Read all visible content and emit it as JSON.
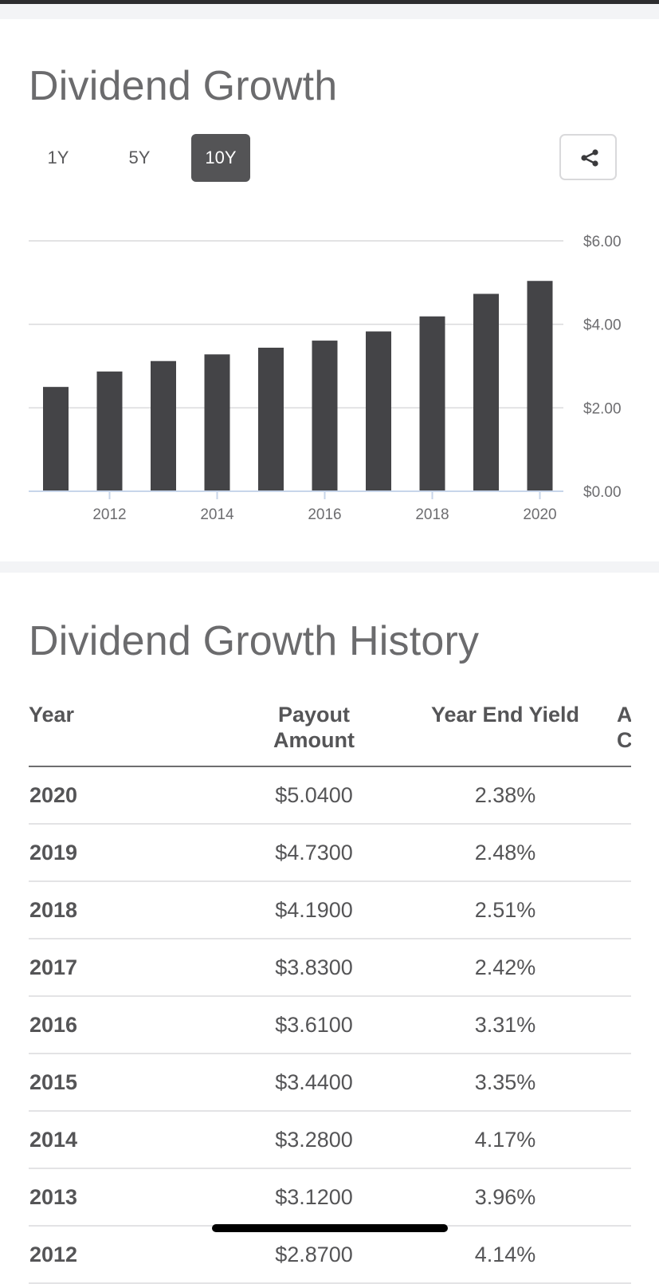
{
  "sections": {
    "growth_title": "Dividend Growth",
    "history_title": "Dividend Growth History"
  },
  "range_tabs": [
    {
      "label": "1Y",
      "active": false
    },
    {
      "label": "5Y",
      "active": false
    },
    {
      "label": "10Y",
      "active": true
    }
  ],
  "share": {
    "icon": "share-icon"
  },
  "chart_data": {
    "type": "bar",
    "categories": [
      "2011",
      "2012",
      "2013",
      "2014",
      "2015",
      "2016",
      "2017",
      "2018",
      "2019",
      "2020"
    ],
    "values": [
      2.5,
      2.87,
      3.12,
      3.28,
      3.44,
      3.61,
      3.83,
      4.19,
      4.73,
      5.04
    ],
    "x_tick_labels": [
      "2012",
      "2014",
      "2016",
      "2018",
      "2020"
    ],
    "y_tick_labels": [
      "$6.00",
      "$4.00",
      "$2.00",
      "$0.00"
    ],
    "ylim": [
      0,
      6
    ],
    "y_axis_position": "right",
    "grid": true,
    "bar_color": "#444447"
  },
  "history_table": {
    "columns": [
      "Year",
      "Payout Amount",
      "Year End Yield",
      "A C"
    ],
    "header_lines": {
      "year": "Year",
      "payout_1": "Payout",
      "payout_2": "Amount",
      "yield": "Year End Yield",
      "annual_1": "A",
      "annual_2": "C"
    },
    "rows": [
      {
        "year": "2020",
        "payout": "$5.0400",
        "yield": "2.38%"
      },
      {
        "year": "2019",
        "payout": "$4.7300",
        "yield": "2.48%"
      },
      {
        "year": "2018",
        "payout": "$4.1900",
        "yield": "2.51%"
      },
      {
        "year": "2017",
        "payout": "$3.8300",
        "yield": "2.42%"
      },
      {
        "year": "2016",
        "payout": "$3.6100",
        "yield": "3.31%"
      },
      {
        "year": "2015",
        "payout": "$3.4400",
        "yield": "3.35%"
      },
      {
        "year": "2014",
        "payout": "$3.2800",
        "yield": "4.17%"
      },
      {
        "year": "2013",
        "payout": "$3.1200",
        "yield": "3.96%"
      },
      {
        "year": "2012",
        "payout": "$2.8700",
        "yield": "4.14%"
      }
    ]
  }
}
